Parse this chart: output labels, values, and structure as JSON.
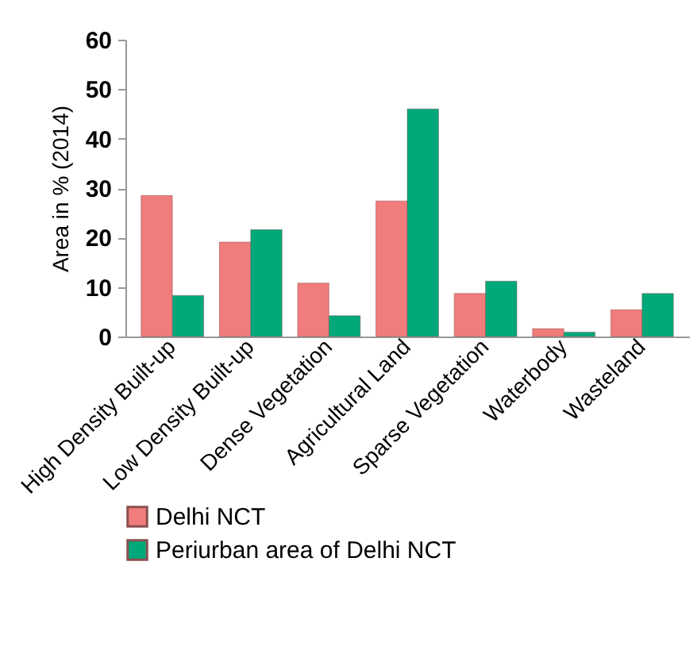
{
  "chart_data": {
    "type": "bar",
    "ylabel": "Area in % (2014)",
    "categories": [
      "High Density Built-up",
      "Low Density Built-up",
      "Dense Vegetation",
      "Agricultural Land",
      "Sparse Vegetation",
      "Waterbody",
      "Wasteland"
    ],
    "series": [
      {
        "name": "Delhi NCT",
        "color": "#f07c7c",
        "values": [
          28.5,
          19.1,
          10.8,
          27.4,
          8.7,
          1.6,
          5.4
        ]
      },
      {
        "name": "Periurban area of Delhi NCT",
        "color": "#00a87a",
        "values": [
          8.3,
          21.6,
          4.2,
          46.0,
          11.2,
          0.9,
          8.7
        ]
      }
    ],
    "ylim": [
      0,
      60
    ],
    "yticks": [
      0,
      10,
      20,
      30,
      40,
      50,
      60
    ],
    "grid": false,
    "legend": "bottom"
  }
}
